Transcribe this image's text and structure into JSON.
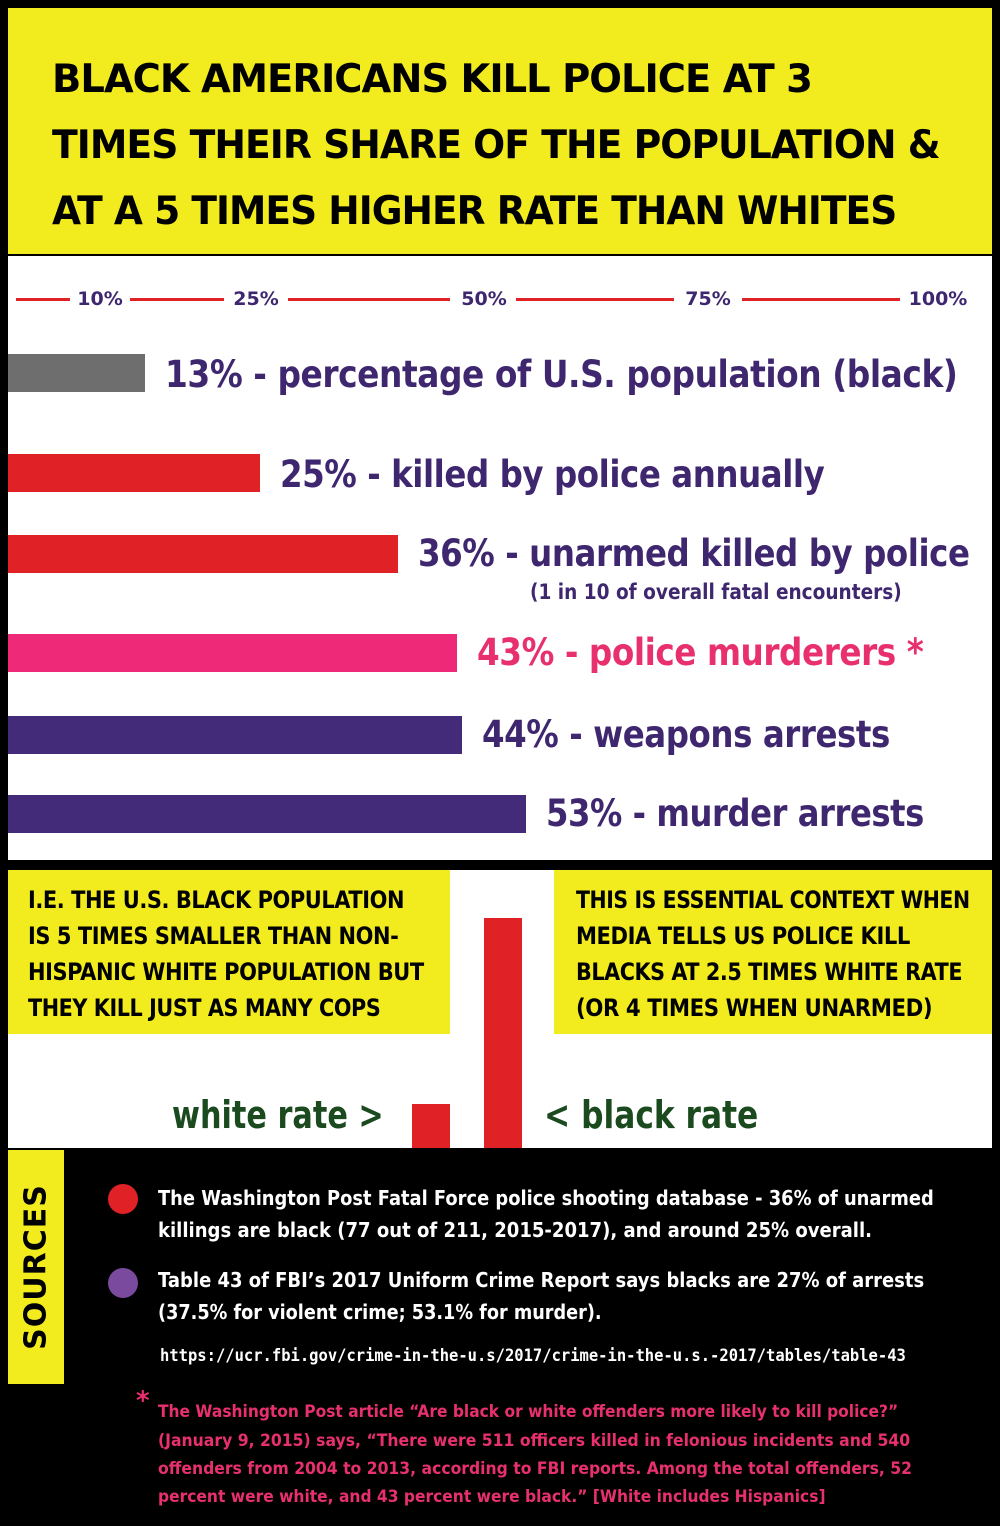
{
  "header": {
    "title_lines": [
      "BLACK AMERICANS KILL POLICE AT 3",
      "TIMES THEIR SHARE OF THE POPULATION &",
      "AT A 5 TIMES HIGHER RATE THAN WHITES"
    ]
  },
  "chart_data": {
    "type": "bar",
    "orientation": "horizontal",
    "title": "BLACK AMERICANS KILL POLICE AT 3 TIMES THEIR SHARE OF THE POPULATION & AT A 5 TIMES HIGHER RATE THAN WHITES",
    "scale_ticks": [
      "10%",
      "25%",
      "50%",
      "75%",
      "100%"
    ],
    "scale_values": [
      10,
      25,
      50,
      75,
      100
    ],
    "xlim": [
      0,
      100
    ],
    "bars": [
      {
        "label": "13% - percentage of U.S. population (black)",
        "value": 13,
        "color": "#6e6e6e",
        "label_color": "#3f2770"
      },
      {
        "label": "25% - killed by police annually",
        "value": 25,
        "color": "#e02227",
        "label_color": "#3f2770"
      },
      {
        "label": "36% - unarmed killed by police",
        "value": 36,
        "color": "#e02227",
        "label_color": "#3f2770",
        "sublabel": "(1 in 10 of overall fatal encounters)"
      },
      {
        "label": "43% - police murderers *",
        "value": 43,
        "color": "#ee2a78",
        "label_color": "#e8306f"
      },
      {
        "label": "44% - weapons arrests",
        "value": 44,
        "color": "#432b7a",
        "label_color": "#3f2770"
      },
      {
        "label": "53% - murder arrests",
        "value": 53,
        "color": "#432b7a",
        "label_color": "#3f2770"
      }
    ]
  },
  "context": {
    "left_lines": [
      "I.E. THE U.S. BLACK POPULATION",
      "IS 5 TIMES SMALLER THAN NON-",
      "HISPANIC WHITE POPULATION BUT",
      "THEY KILL JUST AS MANY COPS"
    ],
    "right_lines": [
      "THIS IS ESSENTIAL CONTEXT WHEN",
      "MEDIA TELLS US POLICE KILL",
      "BLACKS AT 2.5 TIMES WHITE RATE",
      "(OR 4 TIMES WHEN UNARMED)"
    ],
    "white_rate_label": "white rate >",
    "black_rate_label": "< black rate",
    "white_rate_relative": 1,
    "black_rate_relative": 5,
    "rate_color": "#e02227"
  },
  "sources": {
    "tab_label": "SOURCES",
    "items": [
      {
        "dot_color": "#e02227",
        "lines": [
          "The Washington Post Fatal Force police shooting database - 36% of unarmed",
          "killings are black (77 out of 211, 2015-2017), and around 25% overall."
        ]
      },
      {
        "dot_color": "#7a4a9e",
        "lines": [
          "Table 43 of FBI’s 2017 Uniform Crime Report says blacks are 27% of arrests",
          "(37.5% for violent crime; 53.1% for murder)."
        ]
      }
    ],
    "url": "https://ucr.fbi.gov/crime-in-the-u.s/2017/crime-in-the-u.s.-2017/tables/table-43",
    "footnote_marker": "*",
    "footnote_lines": [
      "The Washington Post article “Are black or white offenders more likely to kill police?”",
      "(January 9, 2015) says, “There were 511 officers killed in felonious incidents and 540",
      "offenders from 2004 to 2013, according to FBI reports. Among the total offenders, 52",
      "percent were white, and 43 percent were black.” [White includes Hispanics]"
    ]
  }
}
